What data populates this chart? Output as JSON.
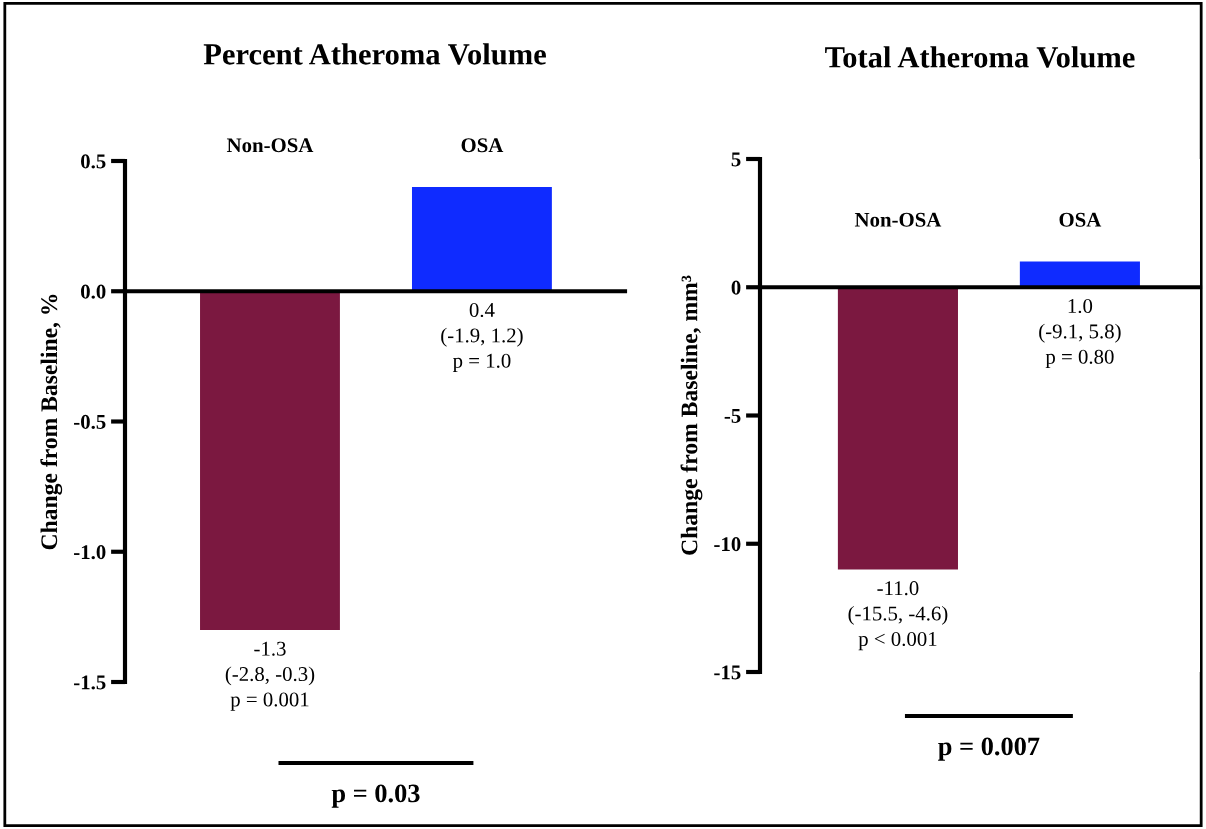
{
  "chart_data": [
    {
      "type": "bar",
      "title": "Percent Atheroma Volume",
      "ylabel": "Change from Baseline, %",
      "categories": [
        "Non-OSA",
        "OSA"
      ],
      "values": [
        -1.3,
        0.4
      ],
      "colors": [
        "#7b1840",
        "#0f2bff"
      ],
      "value_labels": [
        "-1.3\n(-2.8, -0.3)\np = 0.001",
        "0.4\n(-1.9, 1.2)\np = 1.0"
      ],
      "ylim": [
        -1.5,
        0.5
      ],
      "yticks": [
        {
          "value": -1.5,
          "label": "-1.5"
        },
        {
          "value": -1.0,
          "label": "-1.0"
        },
        {
          "value": -0.5,
          "label": "-0.5"
        },
        {
          "value": 0,
          "label": "0.0"
        },
        {
          "value": 0.5,
          "label": "0.5"
        }
      ],
      "annotations": [
        "p = 0.03"
      ]
    },
    {
      "type": "bar",
      "title": "Total Atheroma Volume",
      "ylabel": "Change from Baseline, mm³",
      "categories": [
        "Non-OSA",
        "OSA"
      ],
      "values": [
        -11.0,
        1.0
      ],
      "colors": [
        "#7b1840",
        "#0f2bff"
      ],
      "value_labels": [
        "-11.0\n(-15.5, -4.6)\np < 0.001",
        "1.0\n(-9.1, 5.8)\np = 0.80"
      ],
      "ylim": [
        -15,
        5
      ],
      "yticks": [
        -15,
        -10,
        -5,
        0,
        5
      ],
      "annotations": [
        "p = 0.007"
      ]
    }
  ]
}
